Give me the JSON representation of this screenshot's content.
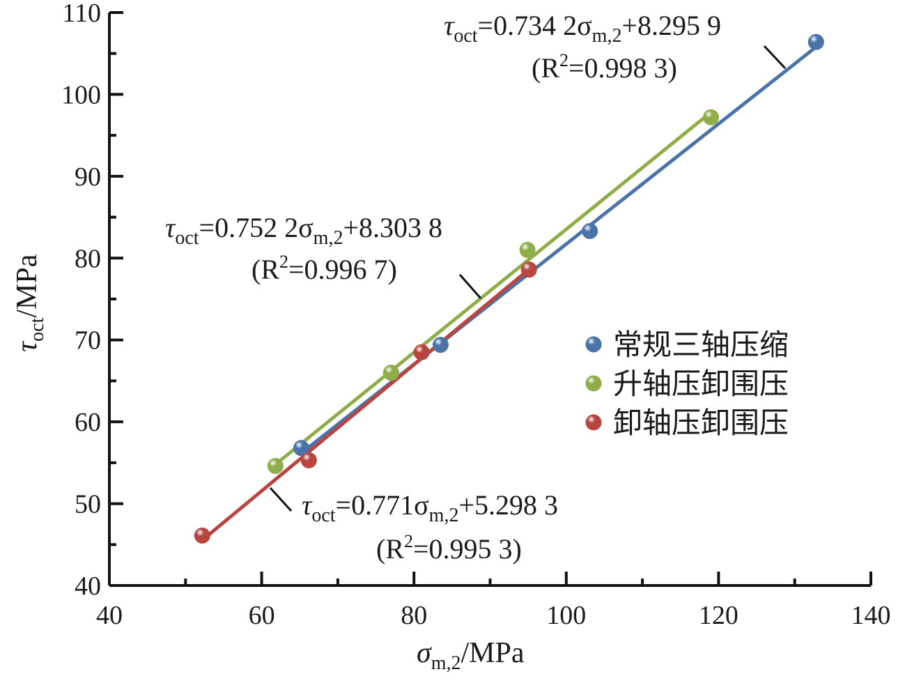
{
  "chart_data": {
    "type": "scatter",
    "xlabel": "σm,2/MPa",
    "ylabel": "τoct/MPa",
    "xlim": [
      40,
      140
    ],
    "ylim": [
      40,
      110
    ],
    "x_ticks": [
      40,
      60,
      80,
      100,
      120,
      140
    ],
    "y_ticks": [
      40,
      50,
      60,
      70,
      80,
      90,
      100,
      110
    ],
    "grid": false,
    "legend_position": "center-right",
    "series": [
      {
        "name": "常规三轴压缩",
        "color": "#4a73a8",
        "points": [
          [
            65.2,
            56.8
          ],
          [
            83.5,
            69.4
          ],
          [
            103.1,
            83.3
          ],
          [
            132.8,
            106.4
          ]
        ],
        "fit": {
          "slope": 0.7342,
          "intercept": 8.2959,
          "x_range": [
            65.2,
            132.8
          ]
        }
      },
      {
        "name": "升轴压卸围压",
        "color": "#8fae4a",
        "points": [
          [
            61.8,
            54.6
          ],
          [
            77.0,
            66.0
          ],
          [
            94.9,
            81.0
          ],
          [
            119.0,
            97.2
          ]
        ],
        "fit": {
          "slope": 0.7522,
          "intercept": 8.3038,
          "x_range": [
            61.8,
            119.0
          ]
        }
      },
      {
        "name": "卸轴压卸围压",
        "color": "#b8453f",
        "points": [
          [
            52.2,
            46.1
          ],
          [
            66.2,
            55.3
          ],
          [
            81.0,
            68.5
          ],
          [
            95.1,
            78.6
          ]
        ],
        "fit": {
          "slope": 0.771,
          "intercept": 5.2983,
          "x_range": [
            52.2,
            95.1
          ]
        }
      }
    ],
    "annotations": [
      {
        "tau": "τ",
        "sub": "oct",
        "mid": "=0.734 2σ",
        "sub2": "m,2",
        "end": "+8.295 9",
        "r_open": "(R",
        "r_sup": "2",
        "r_close": "=0.998 3)"
      },
      {
        "tau": "τ",
        "sub": "oct",
        "mid": "=0.752 2σ",
        "sub2": "m,2",
        "end": "+8.303 8",
        "r_open": "(R",
        "r_sup": "2",
        "r_close": "=0.996 7)"
      },
      {
        "tau": "τ",
        "sub": "oct",
        "mid": "=0.771σ",
        "sub2": "m,2",
        "end": "+5.298 3",
        "r_open": "(R",
        "r_sup": "2",
        "r_close": "=0.995 3)"
      }
    ]
  },
  "axis_titles": {
    "x_sym": "σ",
    "x_sub": "m,2",
    "x_unit": "/MPa",
    "y_sym": "τ",
    "y_sub": "oct",
    "y_unit": "/MPa"
  }
}
